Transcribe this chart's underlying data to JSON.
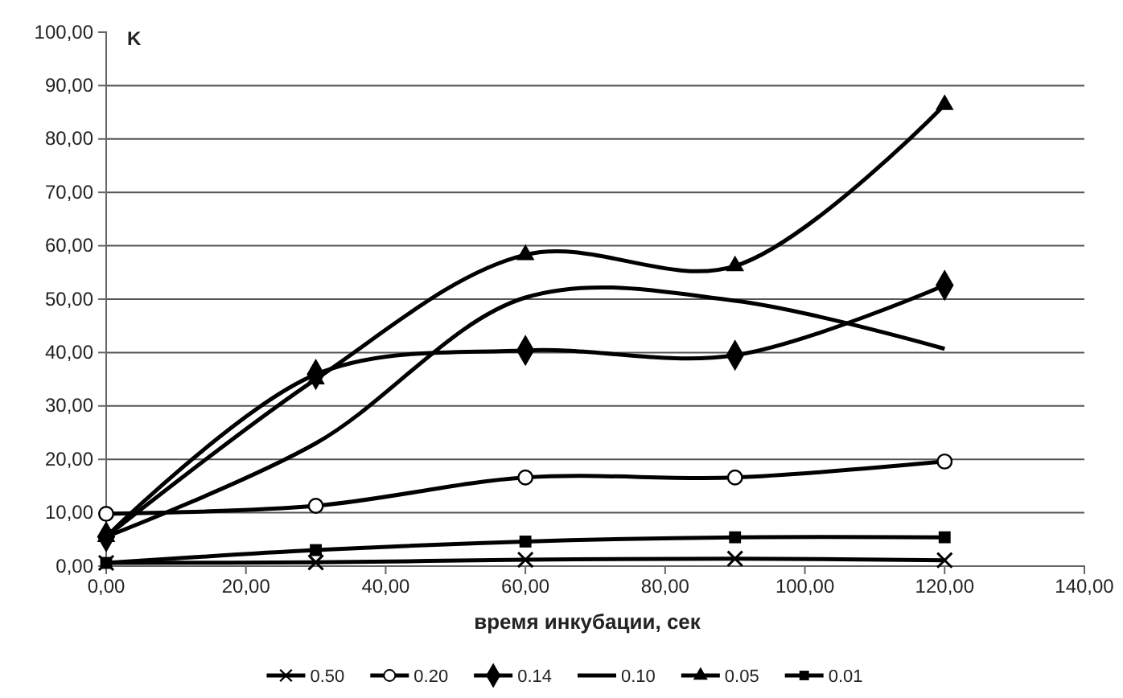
{
  "chart_data": {
    "type": "line",
    "xlabel": "время инкубации, сек",
    "ylabel": "K",
    "xlim": [
      0,
      140
    ],
    "xticks": [
      {
        "value": 0,
        "label": "0,00"
      },
      {
        "value": 20,
        "label": "20,00"
      },
      {
        "value": 40,
        "label": "40,00"
      },
      {
        "value": 60,
        "label": "60,00"
      },
      {
        "value": 80,
        "label": "80,00"
      },
      {
        "value": 100,
        "label": "100,00"
      },
      {
        "value": 120,
        "label": "120,00"
      },
      {
        "value": 140,
        "label": "140,00"
      }
    ],
    "ylim": [
      0,
      100
    ],
    "yticks": [
      {
        "value": 0,
        "label": "0,00"
      },
      {
        "value": 10,
        "label": "10,00"
      },
      {
        "value": 20,
        "label": "20,00"
      },
      {
        "value": 30,
        "label": "30,00"
      },
      {
        "value": 40,
        "label": "40,00"
      },
      {
        "value": 50,
        "label": "50,00"
      },
      {
        "value": 60,
        "label": "60,00"
      },
      {
        "value": 70,
        "label": "70,00"
      },
      {
        "value": 80,
        "label": "80,00"
      },
      {
        "value": 90,
        "label": "90,00"
      },
      {
        "value": 100,
        "label": "100,00"
      }
    ],
    "grid": "y",
    "legend": "bottom",
    "line_style": "solid",
    "x": [
      0,
      30,
      60,
      90,
      120
    ],
    "series": [
      {
        "name": "0.50",
        "color": "#000000",
        "marker": "cross",
        "values": [
          0.6,
          0.7,
          1.2,
          1.4,
          1.1
        ]
      },
      {
        "name": "0.20",
        "color": "#000000",
        "marker": "circle",
        "values": [
          9.8,
          11.3,
          16.6,
          16.6,
          19.6
        ]
      },
      {
        "name": "0.14",
        "color": "#000000",
        "marker": "diamond",
        "values": [
          5.5,
          35.9,
          40.4,
          39.5,
          52.6
        ]
      },
      {
        "name": "0.10",
        "color": "#000000",
        "marker": "none",
        "values": [
          5.5,
          23,
          50.3,
          49.7,
          40.7
        ]
      },
      {
        "name": "0.05",
        "color": "#000000",
        "marker": "triangle",
        "values": [
          5.5,
          35,
          58.3,
          56.2,
          86.4
        ]
      },
      {
        "name": "0.01",
        "color": "#000000",
        "marker": "square",
        "values": [
          0.6,
          3,
          4.6,
          5.4,
          5.4
        ]
      }
    ]
  }
}
